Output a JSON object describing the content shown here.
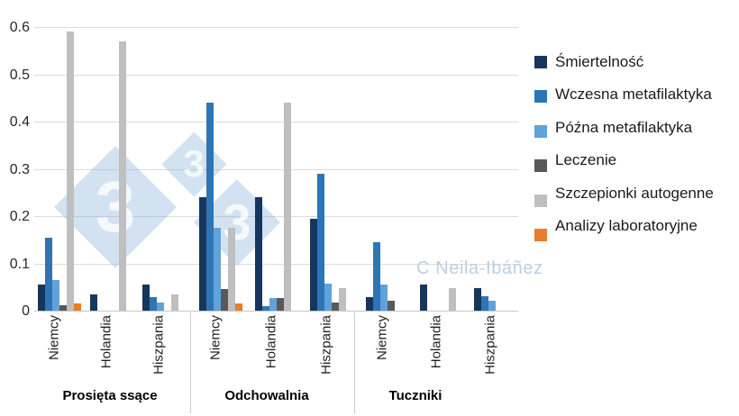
{
  "watermark": {
    "glyph": "3",
    "credit": "C Neila-Ibáñez"
  },
  "chart_data": {
    "type": "bar",
    "title": "",
    "xlabel": "",
    "ylabel": "",
    "ylim": [
      0,
      0.6
    ],
    "grid": true,
    "legend_position": "right",
    "ytick_values": [
      0,
      0.1,
      0.2,
      0.3,
      0.4,
      0.5,
      0.6
    ],
    "ytick_labels": [
      "0",
      "0.1",
      "0.2",
      "0.3",
      "0.4",
      "0.5",
      "0.6"
    ],
    "series": [
      {
        "name": "Śmiertelność",
        "color": "#17365D"
      },
      {
        "name": "Wczesna metafilaktyka",
        "color": "#2E75B6"
      },
      {
        "name": "Późna metafilaktyka",
        "color": "#5FA2DC"
      },
      {
        "name": "Leczenie",
        "color": "#595959"
      },
      {
        "name": "Szczepionki autogenne",
        "color": "#BFBFBF"
      },
      {
        "name": "Analizy laboratoryjne",
        "color": "#E87D2B"
      }
    ],
    "groups": [
      {
        "label": "Prosięta ssące",
        "categories": [
          "Niemcy",
          "Holandia",
          "Hiszpania"
        ],
        "values": [
          [
            0.055,
            0.155,
            0.065,
            0.012,
            0.59,
            0.015
          ],
          [
            0.035,
            0,
            0,
            0,
            0.57,
            0
          ],
          [
            0.055,
            0.028,
            0.018,
            0,
            0.035,
            0
          ]
        ]
      },
      {
        "label": "Odchowalnia",
        "categories": [
          "Niemcy",
          "Holandia",
          "Hiszpania"
        ],
        "values": [
          [
            0.24,
            0.44,
            0.175,
            0.045,
            0.175,
            0.015
          ],
          [
            0.24,
            0.01,
            0.027,
            0.027,
            0.44,
            0
          ],
          [
            0.195,
            0.29,
            0.058,
            0.018,
            0.048,
            0
          ]
        ]
      },
      {
        "label": "Tuczniki",
        "categories": [
          "Niemcy",
          "Holandia",
          "Hiszpania"
        ],
        "values": [
          [
            0.028,
            0.145,
            0.056,
            0.02,
            0,
            0
          ],
          [
            0.056,
            0,
            0,
            0,
            0.048,
            0
          ],
          [
            0.047,
            0.03,
            0.02,
            0,
            0,
            0
          ]
        ]
      }
    ]
  }
}
